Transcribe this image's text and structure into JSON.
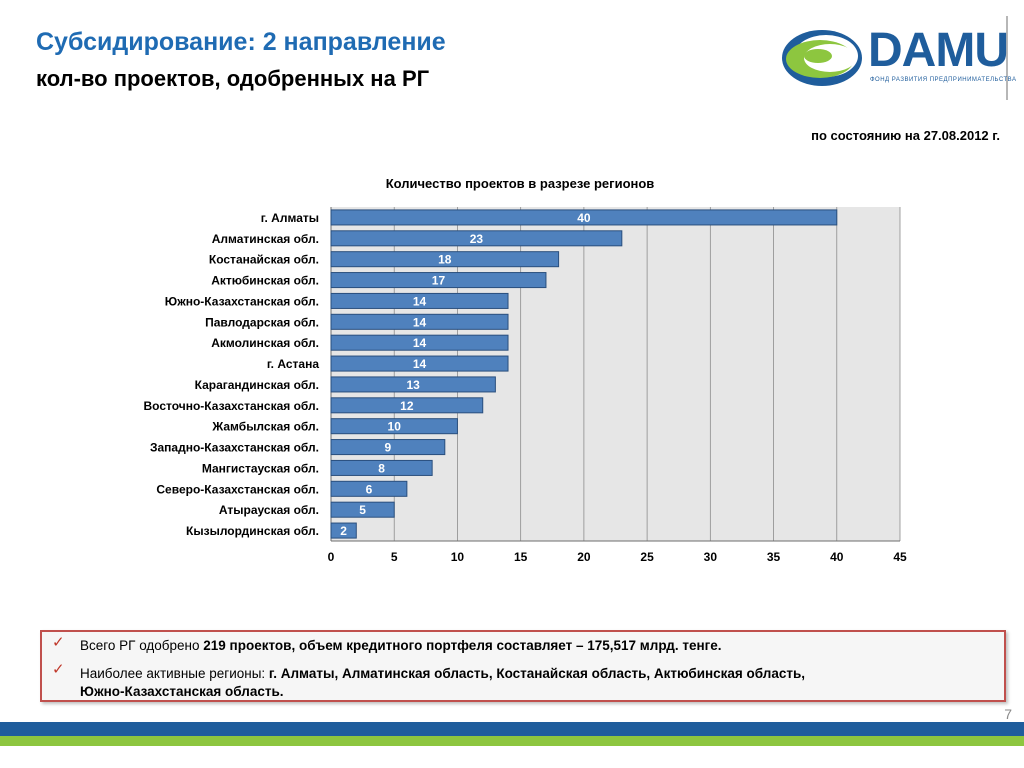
{
  "header": {
    "title": "Субсидирование: 2 направление",
    "subtitle": "кол-во проектов, одобренных на РГ"
  },
  "logo": {
    "word": "DAMU",
    "tagline": "ФОНД РАЗВИТИЯ ПРЕДПРИНИМАТЕЛЬСТВА"
  },
  "as_of": "по состоянию на 27.08.2012 г.",
  "chart_data": {
    "type": "bar",
    "orientation": "horizontal",
    "title": "Количество проектов в разрезе регионов",
    "categories": [
      "г. Алматы",
      "Алматинская обл.",
      "Костанайская обл.",
      "Актюбинская обл.",
      "Южно-Казахстанская обл.",
      "Павлодарская обл.",
      "Акмолинская обл.",
      "г. Астана",
      "Карагандинская обл.",
      "Восточно-Казахстанская обл.",
      "Жамбылская обл.",
      "Западно-Казахстанская обл.",
      "Мангистауская обл.",
      "Северо-Казахстанская обл.",
      "Атырауская обл.",
      "Кызылординская обл."
    ],
    "values": [
      40,
      23,
      18,
      17,
      14,
      14,
      14,
      14,
      13,
      12,
      10,
      9,
      8,
      6,
      5,
      2
    ],
    "xlim": [
      0,
      45
    ],
    "xticks": [
      0,
      5,
      10,
      15,
      20,
      25,
      30,
      35,
      40,
      45
    ],
    "grid": true,
    "bar_color": "#4f81bd",
    "bar_border": "#2a4f7d",
    "plot_background": "#e6e6e6",
    "value_label_color": "#ffffff"
  },
  "summary": {
    "line1": {
      "prefix": "Всего РГ одобрено ",
      "bold": "219  проектов, объем кредитного портфеля составляет – 175,517 млрд. тенге."
    },
    "line2": {
      "prefix": "Наиболее активные регионы: ",
      "bold_a": "г. Алматы, Алматинская область, Костанайская область, Актюбинская область,",
      "bold_b": "Южно-Казахстанская область."
    },
    "check_icon": "✓"
  },
  "page_number": "7",
  "colors": {
    "title_blue": "#1f6bb3",
    "band_blue": "#1f5d9c",
    "band_green": "#8dc63f",
    "frame_red": "#c0504d"
  }
}
